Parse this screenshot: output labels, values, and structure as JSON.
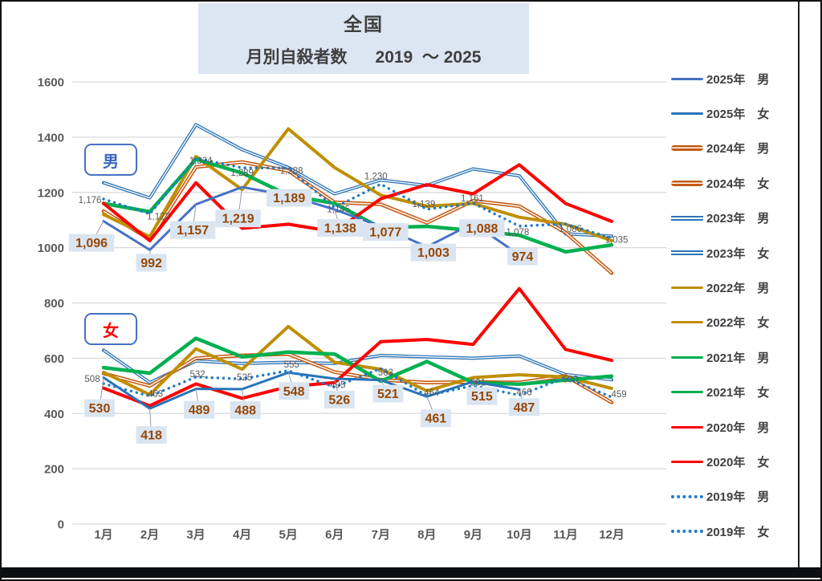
{
  "header": {
    "line1": "全国",
    "line2": "月別自殺者数      2019  ～ 2025"
  },
  "groups": {
    "male": "男",
    "female": "女"
  },
  "axis": {
    "y_ticks": [
      1600,
      1400,
      1200,
      1000,
      800,
      600,
      400,
      200,
      0
    ],
    "x_labels": [
      "1月",
      "2月",
      "3月",
      "4月",
      "5月",
      "6月",
      "7月",
      "8月",
      "9月",
      "10月",
      "11月",
      "12月"
    ]
  },
  "legend": [
    {
      "id": "2025-male",
      "label": "2025年　男",
      "color": "#4472C4",
      "style": "solid"
    },
    {
      "id": "2025-female",
      "label": "2025年　女",
      "color": "#2874B8",
      "style": "solid"
    },
    {
      "id": "2024-male",
      "label": "2024年　男",
      "color": "#C55A11",
      "style": "thick"
    },
    {
      "id": "2024-female",
      "label": "2024年　女",
      "color": "#C55A11",
      "style": "thick"
    },
    {
      "id": "2023-male",
      "label": "2023年　男",
      "color": "#2E75B6",
      "style": "double"
    },
    {
      "id": "2023-female",
      "label": "2023年　女",
      "color": "#2E75B6",
      "style": "double"
    },
    {
      "id": "2022-male",
      "label": "2022年　男",
      "color": "#BF8F00",
      "style": "solid"
    },
    {
      "id": "2022-female",
      "label": "2022年　女",
      "color": "#BF8F00",
      "style": "solid"
    },
    {
      "id": "2021-male",
      "label": "2021年　男",
      "color": "#00B050",
      "style": "solid"
    },
    {
      "id": "2021-female",
      "label": "2021年　女",
      "color": "#00B050",
      "style": "solid"
    },
    {
      "id": "2020-male",
      "label": "2020年　男",
      "color": "#FF0000",
      "style": "solid"
    },
    {
      "id": "2020-female",
      "label": "2020年　女",
      "color": "#FF0000",
      "style": "solid"
    },
    {
      "id": "2019-male",
      "label": "2019年　男",
      "color": "#1F7AC9",
      "style": "dotted"
    },
    {
      "id": "2019-female",
      "label": "2019年　女",
      "color": "#1F7AC9",
      "style": "dotted"
    }
  ],
  "chart_data": {
    "type": "line",
    "title": "全国 月別自殺者数 2019 ～ 2025",
    "categories": [
      "1月",
      "2月",
      "3月",
      "4月",
      "5月",
      "6月",
      "7月",
      "8月",
      "9月",
      "10月",
      "11月",
      "12月"
    ],
    "ylim": [
      0,
      1600
    ],
    "grid": true,
    "legend_position": "right",
    "series": [
      {
        "id": "2023-male",
        "name": "2023年 男",
        "color": "#2E75B6",
        "style": "double",
        "width": 4,
        "values": [
          1235,
          1180,
          1445,
          1355,
          1290,
          1195,
          1245,
          1225,
          1285,
          1260,
          1050,
          1042
        ]
      },
      {
        "id": "2023-female",
        "name": "2023年 女",
        "color": "#2E75B6",
        "style": "double",
        "width": 4,
        "values": [
          629,
          512,
          590,
          581,
          585,
          581,
          610,
          605,
          600,
          608,
          541,
          522
        ]
      },
      {
        "id": "2024-male",
        "name": "2024年 男",
        "color": "#C55A11",
        "style": "double",
        "width": 4.6,
        "values": [
          1132,
          1030,
          1292,
          1310,
          1278,
          1164,
          1157,
          1090,
          1170,
          1150,
          1055,
          908
        ]
      },
      {
        "id": "2024-female",
        "name": "2024年 女",
        "color": "#C55A11",
        "style": "double",
        "width": 4.6,
        "values": [
          545,
          500,
          600,
          610,
          615,
          550,
          522,
          512,
          514,
          512,
          536,
          440
        ]
      },
      {
        "id": "2022-male",
        "name": "2022年 男",
        "color": "#BF8F00",
        "style": "solid",
        "width": 4,
        "values": [
          1120,
          1040,
          1330,
          1210,
          1430,
          1290,
          1190,
          1150,
          1160,
          1110,
          1085,
          1025
        ]
      },
      {
        "id": "2022-female",
        "name": "2022年 女",
        "color": "#BF8F00",
        "style": "solid",
        "width": 4,
        "values": [
          549,
          468,
          634,
          560,
          715,
          585,
          560,
          482,
          530,
          540,
          532,
          491
        ]
      },
      {
        "id": "2021-male",
        "name": "2021年 男",
        "color": "#00B050",
        "style": "solid",
        "width": 4.5,
        "values": [
          1160,
          1130,
          1320,
          1270,
          1190,
          1160,
          1072,
          1077,
          1062,
          1045,
          985,
          1010
        ]
      },
      {
        "id": "2021-female",
        "name": "2021年 女",
        "color": "#00B050",
        "style": "solid",
        "width": 4.5,
        "values": [
          566,
          546,
          672,
          605,
          622,
          615,
          517,
          588,
          512,
          506,
          521,
          535
        ]
      },
      {
        "id": "2020-male",
        "name": "2020年 男",
        "color": "#FF0000",
        "style": "solid",
        "width": 4,
        "values": [
          1160,
          1025,
          1235,
          1070,
          1085,
          1058,
          1177,
          1228,
          1195,
          1300,
          1160,
          1095
        ]
      },
      {
        "id": "2020-female",
        "name": "2020年 女",
        "color": "#FF0000",
        "style": "solid",
        "width": 4,
        "values": [
          492,
          428,
          507,
          455,
          497,
          512,
          660,
          668,
          650,
          852,
          632,
          592
        ]
      },
      {
        "id": "2025-male",
        "name": "2025年 男",
        "color": "#4472C4",
        "style": "solid",
        "width": 3,
        "values": [
          1096,
          992,
          1157,
          1219,
          1189,
          1138,
          1077,
          1003,
          1088,
          974,
          null,
          null
        ],
        "labels": {
          "size": "big",
          "texts": [
            "1,096",
            "992",
            "1,157",
            "1,219",
            "1,189",
            "1,138",
            "1,077",
            "1,003",
            "1,088",
            "974"
          ],
          "offsets": [
            [
              -15,
              27
            ],
            [
              2,
              16
            ],
            [
              -4,
              32
            ],
            [
              -5,
              39
            ],
            [
              1,
              3
            ],
            [
              7,
              23
            ],
            [
              6,
              7
            ],
            [
              8,
              7
            ],
            [
              11,
              6
            ],
            [
              4,
              2
            ]
          ]
        }
      },
      {
        "id": "2025-female",
        "name": "2025年 女",
        "color": "#2874B8",
        "style": "solid",
        "width": 3,
        "values": [
          530,
          418,
          489,
          488,
          548,
          526,
          521,
          461,
          515,
          487,
          null,
          null
        ],
        "labels": {
          "size": "big",
          "texts": [
            "530",
            "418",
            "489",
            "488",
            "548",
            "526",
            "521",
            "461",
            "515",
            "487"
          ],
          "offsets": [
            [
              -5,
              38
            ],
            [
              2,
              33
            ],
            [
              4,
              26
            ],
            [
              4,
              26
            ],
            [
              7,
              23
            ],
            [
              6,
              26
            ],
            [
              9,
              17
            ],
            [
              11,
              27
            ],
            [
              11,
              18
            ],
            [
              6,
              22
            ]
          ]
        }
      },
      {
        "id": "2019-male",
        "name": "2019年 男",
        "color": "#1F7AC9",
        "style": "dotted",
        "width": 3.4,
        "values": [
          1176,
          1122,
          1324,
          1289,
          1288,
          1145,
          1230,
          1139,
          1161,
          1078,
          1086,
          1035
        ],
        "labels": {
          "size": "small",
          "texts": [
            "1,176",
            "1,122",
            "1,324",
            "1,289",
            "1,288",
            "1,145",
            "1,230",
            "1,139",
            "1,161",
            "1,078",
            "1,086",
            "1,035"
          ],
          "offsets": [
            [
              -17,
              1
            ],
            [
              11,
              3
            ],
            [
              6,
              3
            ],
            [
              0,
              6
            ],
            [
              4,
              3
            ],
            [
              5,
              2
            ],
            [
              -6,
              -10
            ],
            [
              -4,
              -7
            ],
            [
              -1,
              -6
            ],
            [
              -2,
              7
            ],
            [
              6,
              6
            ],
            [
              6,
              2
            ]
          ]
        }
      },
      {
        "id": "2019-female",
        "name": "2019年 女",
        "color": "#1F7AC9",
        "style": "dotted",
        "width": 3.4,
        "values": [
          508,
          463,
          532,
          525,
          555,
          495,
          563,
          464,
          501,
          466,
          530,
          459
        ],
        "labels": {
          "size": "small",
          "texts": [
            "508",
            "463",
            "532",
            "525",
            "555",
            "495",
            "563",
            "464",
            "501",
            "466",
            "530",
            "459"
          ],
          "offsets": [
            [
              -14,
              -6
            ],
            [
              7,
              -3
            ],
            [
              2,
              -4
            ],
            [
              3,
              -2
            ],
            [
              4,
              -8
            ],
            [
              4,
              -3
            ],
            [
              6,
              5
            ],
            [
              6,
              -4
            ],
            [
              6,
              -4
            ],
            [
              6,
              -4
            ],
            [
              6,
              2
            ],
            [
              9,
              -4
            ]
          ]
        }
      }
    ],
    "label_colors": {
      "big_text": "#974706",
      "big_bg": "#dbe5f1",
      "small_text": "#595959"
    }
  }
}
